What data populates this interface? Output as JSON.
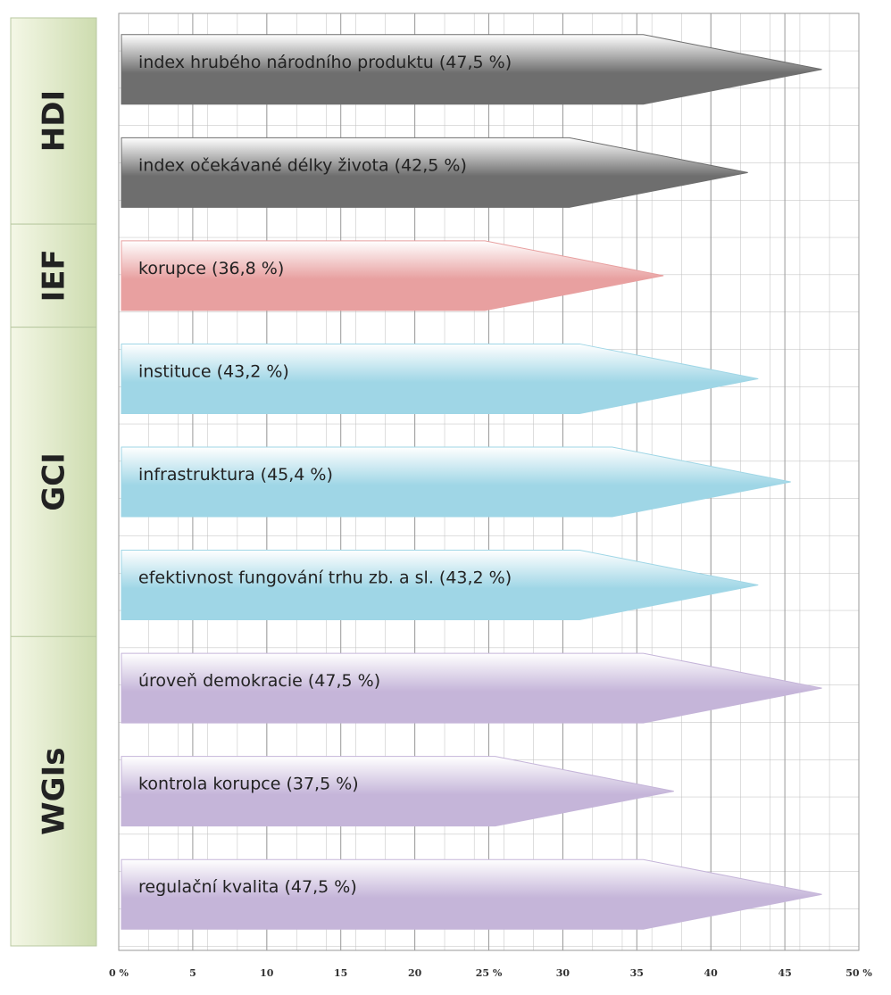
{
  "chart_data": {
    "type": "bar",
    "orientation": "horizontal",
    "xlim": [
      0,
      50
    ],
    "xticks": [
      {
        "value": 0,
        "label": "0 %"
      },
      5,
      10,
      15,
      20,
      {
        "value": 25,
        "label": "25 %"
      },
      30,
      35,
      40,
      45,
      {
        "value": 50,
        "label": "50 %"
      }
    ],
    "grid": true,
    "series": [
      {
        "name": "HDI",
        "color": "#6e6e6e",
        "categories": [
          "index hrubého národního produktu",
          "index očekávané délky života"
        ],
        "values": [
          47.5,
          42.5
        ],
        "value_labels": [
          "(47,5 %)",
          "(42,5 %)"
        ]
      },
      {
        "name": "IEF",
        "color": "#e8a0a0",
        "categories": [
          "korupce"
        ],
        "values": [
          36.8
        ],
        "value_labels": [
          "(36,8 %)"
        ]
      },
      {
        "name": "GCI",
        "color": "#9fd6e6",
        "categories": [
          "instituce",
          "infrastruktura",
          "efektivnost fungování trhu zb. a sl."
        ],
        "values": [
          43.2,
          45.4,
          43.2
        ],
        "value_labels": [
          "(43,2 %)",
          "(45,4 %)",
          "(43,2 %)"
        ]
      },
      {
        "name": "WGIs",
        "color": "#c5b5d9",
        "categories": [
          "úroveň demokracie",
          "kontrola korupce",
          "regulační kvalita"
        ],
        "values": [
          47.5,
          37.5,
          47.5
        ],
        "value_labels": [
          "(47,5 %)",
          "(37,5 %)",
          "(47,5 %)"
        ]
      }
    ]
  }
}
